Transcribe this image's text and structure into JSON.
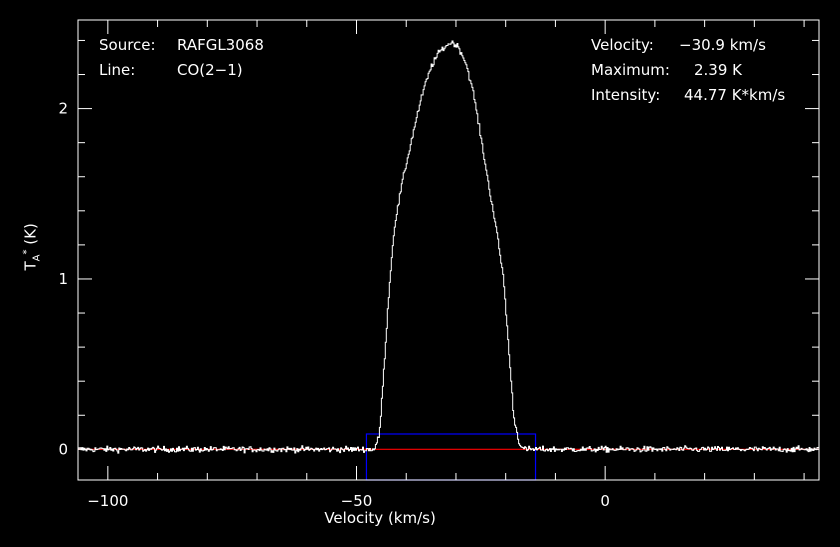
{
  "chart_data": {
    "type": "line",
    "annotations": {
      "source_label": "Source:",
      "source_value": "RAFGL3068",
      "line_label": "Line:",
      "line_value": "CO(2−1)",
      "velocity_label": "Velocity:",
      "velocity_value": "−30.9 km/s",
      "maximum_label": "Maximum:",
      "maximum_value": "2.39 K",
      "intensity_label": "Intensity:",
      "intensity_value": "44.77 K*km/s"
    },
    "xlabel": "Velocity (km/s)",
    "ylabel": "T*A (K)",
    "xlim": [
      -106,
      43
    ],
    "ylim": [
      -0.18,
      2.52
    ],
    "x_ticks": [
      {
        "value": -100,
        "label": "−100"
      },
      {
        "value": -50,
        "label": "−50"
      },
      {
        "value": 0,
        "label": "0"
      }
    ],
    "y_ticks": [
      {
        "value": 0,
        "label": "0"
      },
      {
        "value": 1,
        "label": "1"
      },
      {
        "value": 2,
        "label": "2"
      }
    ],
    "baseline": 0,
    "window": {
      "x": [
        -48,
        -14
      ],
      "y": [
        -0.18,
        0.09
      ]
    },
    "series": [
      {
        "profile": [
          [
            -106,
            0
          ],
          [
            -46.5,
            0
          ],
          [
            -45.5,
            0.08
          ],
          [
            -44.5,
            0.5
          ],
          [
            -43.5,
            0.95
          ],
          [
            -42.5,
            1.3
          ],
          [
            -41,
            1.55
          ],
          [
            -39.5,
            1.75
          ],
          [
            -38,
            1.95
          ],
          [
            -36.5,
            2.12
          ],
          [
            -35,
            2.25
          ],
          [
            -33.5,
            2.33
          ],
          [
            -32,
            2.37
          ],
          [
            -30.9,
            2.39
          ],
          [
            -29.5,
            2.36
          ],
          [
            -28,
            2.26
          ],
          [
            -26.5,
            2.08
          ],
          [
            -25,
            1.82
          ],
          [
            -23.5,
            1.55
          ],
          [
            -22,
            1.3
          ],
          [
            -20.5,
            1.0
          ],
          [
            -19.5,
            0.6
          ],
          [
            -18.5,
            0.2
          ],
          [
            -17.5,
            0.05
          ],
          [
            -16.5,
            0
          ],
          [
            43,
            0
          ]
        ],
        "noise_rms": 0.012
      }
    ],
    "colors": {
      "spectrum": "#ffffff",
      "baseline": "#ff0000",
      "window": "#0000ff",
      "frame": "#ffffff",
      "background": "#000000"
    }
  }
}
